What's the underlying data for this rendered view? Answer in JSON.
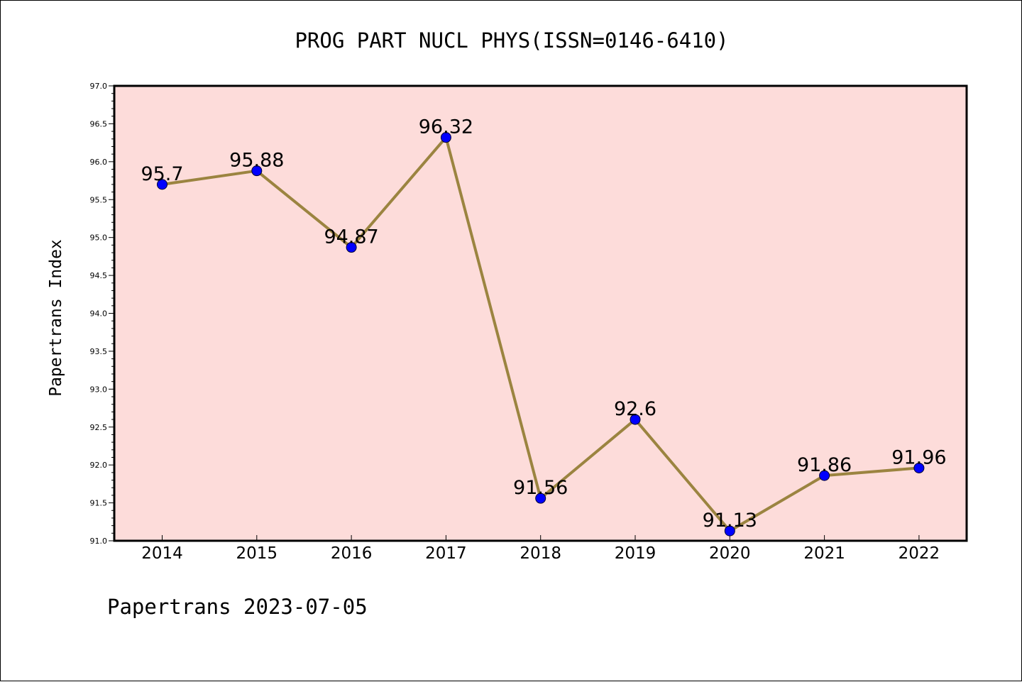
{
  "title": "PROG PART NUCL PHYS(ISSN=0146-6410)",
  "footer": "Papertrans 2023-07-05",
  "colors": {
    "plot_bg": "#fddcda",
    "line": "#9b8440",
    "marker": "#0000ff",
    "axis": "#000000"
  },
  "chart_data": {
    "type": "line",
    "title": "PROG PART NUCL PHYS(ISSN=0146-6410)",
    "xlabel": "",
    "ylabel": "Papertrans Index",
    "categories": [
      "2014",
      "2015",
      "2016",
      "2017",
      "2018",
      "2019",
      "2020",
      "2021",
      "2022"
    ],
    "series": [
      {
        "values": [
          95.7,
          95.88,
          94.87,
          96.32,
          91.56,
          92.6,
          91.13,
          91.86,
          91.96
        ]
      }
    ],
    "data_labels": [
      "95.7",
      "95.88",
      "94.87",
      "96.32",
      "91.56",
      "92.6",
      "91.13",
      "91.86",
      "91.96"
    ],
    "ylim": [
      91.0,
      97.0
    ],
    "yticks": [
      "91.0",
      "91.5",
      "92.0",
      "92.5",
      "93.0",
      "93.5",
      "94.0",
      "94.5",
      "95.0",
      "95.5",
      "96.0",
      "96.5",
      "97.0"
    ],
    "grid": false,
    "legend": "none"
  }
}
